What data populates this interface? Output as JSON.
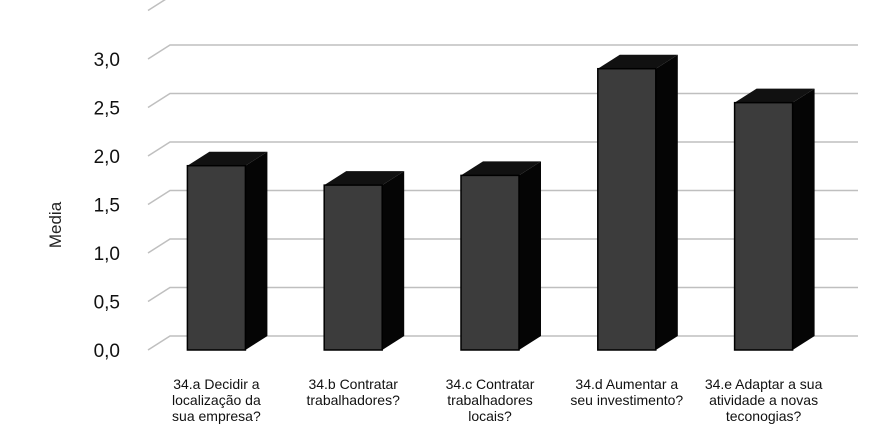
{
  "chart_data": {
    "type": "bar",
    "categories": [
      [
        "34.a Decidir a",
        "localização da",
        "sua empresa?"
      ],
      [
        "34.b Contratar",
        "trabalhadores?"
      ],
      [
        "34.c Contratar",
        "trabalhadores",
        "locais?"
      ],
      [
        "34.d Aumentar a",
        "seu investimento?"
      ],
      [
        "34.e Adaptar a sua",
        "atividade a novas",
        "teconogias?"
      ]
    ],
    "values": [
      1.9,
      1.7,
      1.8,
      2.9,
      2.55
    ],
    "ylabel": "Media",
    "yticks": [
      "0,0",
      "0,5",
      "1,0",
      "1,5",
      "2,0",
      "2,5",
      "3,0"
    ],
    "ylim": [
      0,
      3.5
    ],
    "grid": true,
    "style": "3d-column",
    "colors": {
      "front": "#3c3c3c",
      "side": "#050505",
      "top": "#111111",
      "grid": "#bfbfbf"
    }
  }
}
